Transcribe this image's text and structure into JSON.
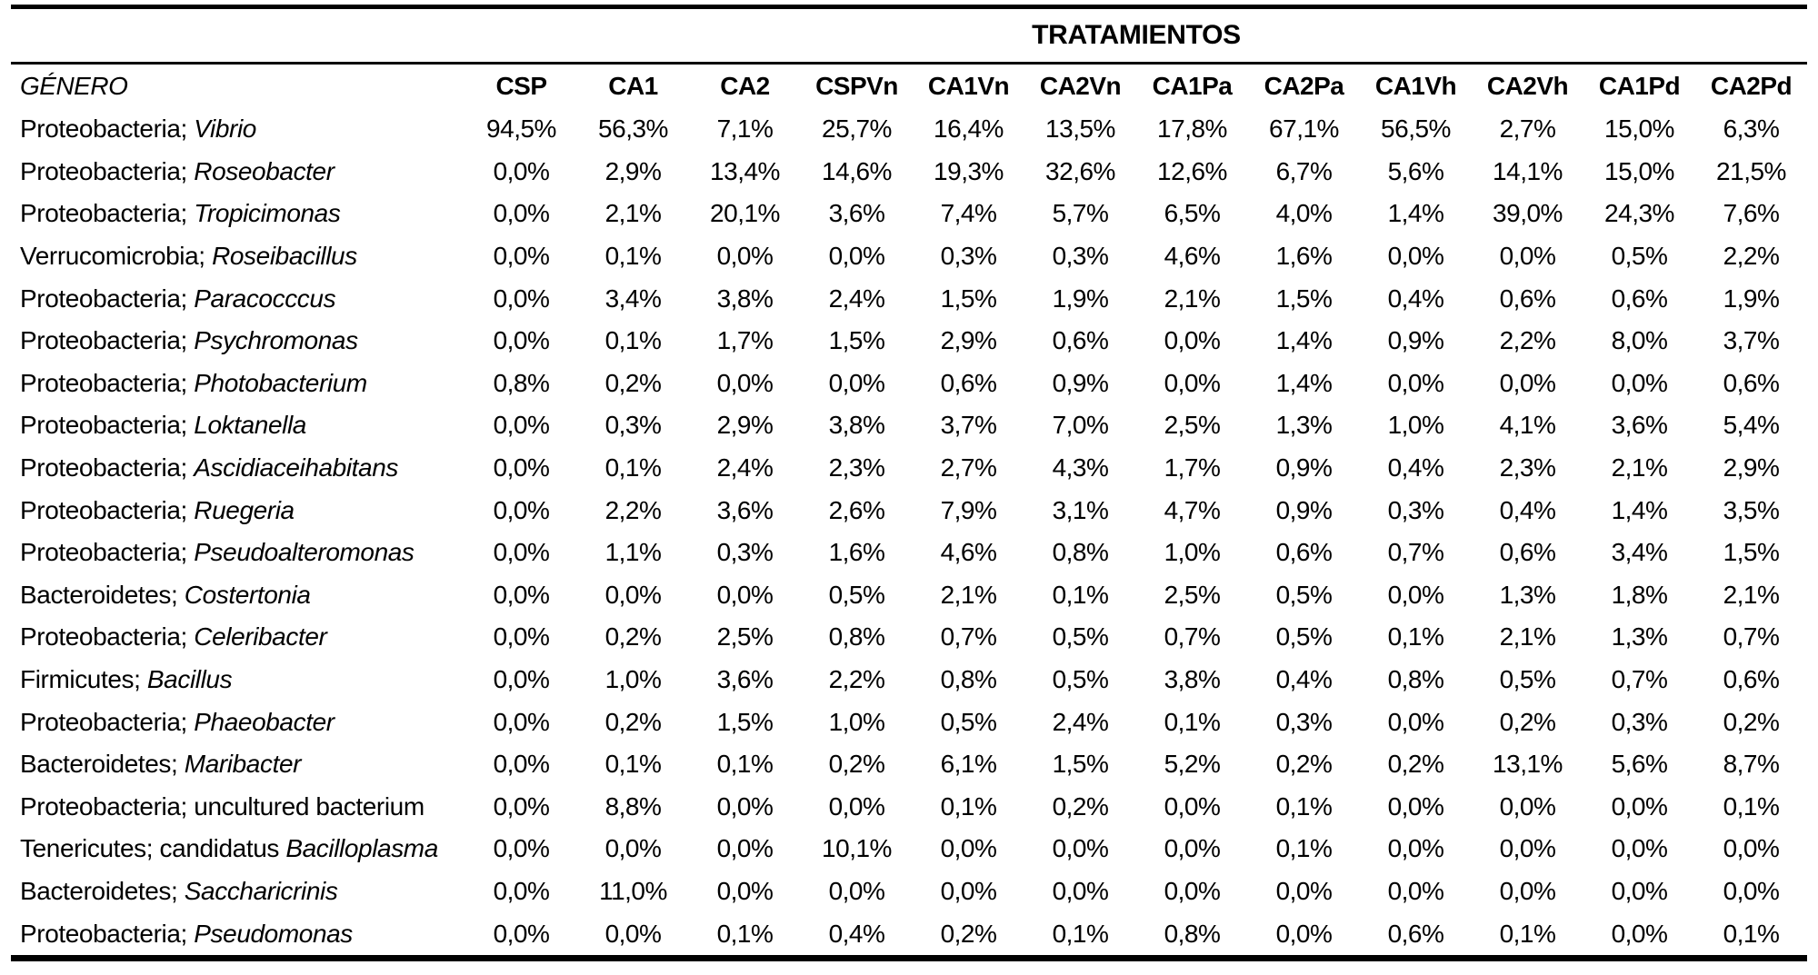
{
  "colors": {
    "text": "#000000",
    "background": "#ffffff",
    "border": "#000000"
  },
  "table": {
    "group_header": "TRATAMIENTOS",
    "genero_header": "GÉNERO",
    "columns": [
      "CSP",
      "CA1",
      "CA2",
      "CSPVn",
      "CA1Vn",
      "CA2Vn",
      "CA1Pa",
      "CA2Pa",
      "CA1Vh",
      "CA2Vh",
      "CA1Pd",
      "CA2Pd"
    ],
    "rows": [
      {
        "label_plain": "Proteobacteria; ",
        "label_italic": "Vibrio",
        "values": [
          "94,5%",
          "56,3%",
          "7,1%",
          "25,7%",
          "16,4%",
          "13,5%",
          "17,8%",
          "67,1%",
          "56,5%",
          "2,7%",
          "15,0%",
          "6,3%"
        ]
      },
      {
        "label_plain": "Proteobacteria; ",
        "label_italic": "Roseobacter",
        "values": [
          "0,0%",
          "2,9%",
          "13,4%",
          "14,6%",
          "19,3%",
          "32,6%",
          "12,6%",
          "6,7%",
          "5,6%",
          "14,1%",
          "15,0%",
          "21,5%"
        ]
      },
      {
        "label_plain": "Proteobacteria; ",
        "label_italic": "Tropicimonas",
        "values": [
          "0,0%",
          "2,1%",
          "20,1%",
          "3,6%",
          "7,4%",
          "5,7%",
          "6,5%",
          "4,0%",
          "1,4%",
          "39,0%",
          "24,3%",
          "7,6%"
        ]
      },
      {
        "label_plain": "Verrucomicrobia; ",
        "label_italic": "Roseibacillus",
        "values": [
          "0,0%",
          "0,1%",
          "0,0%",
          "0,0%",
          "0,3%",
          "0,3%",
          "4,6%",
          "1,6%",
          "0,0%",
          "0,0%",
          "0,5%",
          "2,2%"
        ]
      },
      {
        "label_plain": "Proteobacteria; ",
        "label_italic": "Paracocccus",
        "values": [
          "0,0%",
          "3,4%",
          "3,8%",
          "2,4%",
          "1,5%",
          "1,9%",
          "2,1%",
          "1,5%",
          "0,4%",
          "0,6%",
          "0,6%",
          "1,9%"
        ]
      },
      {
        "label_plain": "Proteobacteria; ",
        "label_italic": "Psychromonas",
        "values": [
          "0,0%",
          "0,1%",
          "1,7%",
          "1,5%",
          "2,9%",
          "0,6%",
          "0,0%",
          "1,4%",
          "0,9%",
          "2,2%",
          "8,0%",
          "3,7%"
        ]
      },
      {
        "label_plain": "Proteobacteria; ",
        "label_italic": "Photobacterium",
        "values": [
          "0,8%",
          "0,2%",
          "0,0%",
          "0,0%",
          "0,6%",
          "0,9%",
          "0,0%",
          "1,4%",
          "0,0%",
          "0,0%",
          "0,0%",
          "0,6%"
        ]
      },
      {
        "label_plain": "Proteobacteria; ",
        "label_italic": "Loktanella",
        "values": [
          "0,0%",
          "0,3%",
          "2,9%",
          "3,8%",
          "3,7%",
          "7,0%",
          "2,5%",
          "1,3%",
          "1,0%",
          "4,1%",
          "3,6%",
          "5,4%"
        ]
      },
      {
        "label_plain": "Proteobacteria; ",
        "label_italic": "Ascidiaceihabitans",
        "values": [
          "0,0%",
          "0,1%",
          "2,4%",
          "2,3%",
          "2,7%",
          "4,3%",
          "1,7%",
          "0,9%",
          "0,4%",
          "2,3%",
          "2,1%",
          "2,9%"
        ]
      },
      {
        "label_plain": "Proteobacteria; ",
        "label_italic": "Ruegeria",
        "values": [
          "0,0%",
          "2,2%",
          "3,6%",
          "2,6%",
          "7,9%",
          "3,1%",
          "4,7%",
          "0,9%",
          "0,3%",
          "0,4%",
          "1,4%",
          "3,5%"
        ]
      },
      {
        "label_plain": "Proteobacteria; ",
        "label_italic": "Pseudoalteromonas",
        "values": [
          "0,0%",
          "1,1%",
          "0,3%",
          "1,6%",
          "4,6%",
          "0,8%",
          "1,0%",
          "0,6%",
          "0,7%",
          "0,6%",
          "3,4%",
          "1,5%"
        ]
      },
      {
        "label_plain": "Bacteroidetes; ",
        "label_italic": "Costertonia",
        "values": [
          "0,0%",
          "0,0%",
          "0,0%",
          "0,5%",
          "2,1%",
          "0,1%",
          "2,5%",
          "0,5%",
          "0,0%",
          "1,3%",
          "1,8%",
          "2,1%"
        ]
      },
      {
        "label_plain": "Proteobacteria; ",
        "label_italic": "Celeribacter",
        "values": [
          "0,0%",
          "0,2%",
          "2,5%",
          "0,8%",
          "0,7%",
          "0,5%",
          "0,7%",
          "0,5%",
          "0,1%",
          "2,1%",
          "1,3%",
          "0,7%"
        ]
      },
      {
        "label_plain": "Firmicutes; ",
        "label_italic": "Bacillus",
        "values": [
          "0,0%",
          "1,0%",
          "3,6%",
          "2,2%",
          "0,8%",
          "0,5%",
          "3,8%",
          "0,4%",
          "0,8%",
          "0,5%",
          "0,7%",
          "0,6%"
        ]
      },
      {
        "label_plain": "Proteobacteria; ",
        "label_italic": "Phaeobacter",
        "values": [
          "0,0%",
          "0,2%",
          "1,5%",
          "1,0%",
          "0,5%",
          "2,4%",
          "0,1%",
          "0,3%",
          "0,0%",
          "0,2%",
          "0,3%",
          "0,2%"
        ]
      },
      {
        "label_plain": "Bacteroidetes; ",
        "label_italic": "Maribacter",
        "values": [
          "0,0%",
          "0,1%",
          "0,1%",
          "0,2%",
          "6,1%",
          "1,5%",
          "5,2%",
          "0,2%",
          "0,2%",
          "13,1%",
          "5,6%",
          "8,7%"
        ]
      },
      {
        "label_plain": "Proteobacteria; uncultured bacterium",
        "label_italic": "",
        "values": [
          "0,0%",
          "8,8%",
          "0,0%",
          "0,0%",
          "0,1%",
          "0,2%",
          "0,0%",
          "0,1%",
          "0,0%",
          "0,0%",
          "0,0%",
          "0,1%"
        ]
      },
      {
        "label_plain": "Tenericutes; candidatus ",
        "label_italic": "Bacilloplasma",
        "values": [
          "0,0%",
          "0,0%",
          "0,0%",
          "10,1%",
          "0,0%",
          "0,0%",
          "0,0%",
          "0,1%",
          "0,0%",
          "0,0%",
          "0,0%",
          "0,0%"
        ]
      },
      {
        "label_plain": "Bacteroidetes; ",
        "label_italic": "Saccharicrinis",
        "values": [
          "0,0%",
          "11,0%",
          "0,0%",
          "0,0%",
          "0,0%",
          "0,0%",
          "0,0%",
          "0,0%",
          "0,0%",
          "0,0%",
          "0,0%",
          "0,0%"
        ]
      },
      {
        "label_plain": "Proteobacteria; ",
        "label_italic": "Pseudomonas",
        "values": [
          "0,0%",
          "0,0%",
          "0,1%",
          "0,4%",
          "0,2%",
          "0,1%",
          "0,8%",
          "0,0%",
          "0,6%",
          "0,1%",
          "0,0%",
          "0,1%"
        ]
      }
    ]
  }
}
